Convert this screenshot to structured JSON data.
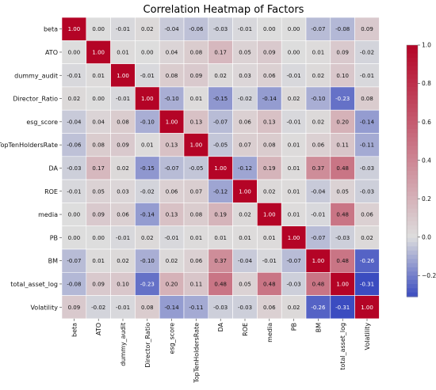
{
  "chart_data": {
    "type": "heatmap",
    "title": "Correlation Heatmap of Factors",
    "labels": [
      "beta",
      "ATO",
      "dummy_audit",
      "Director_Ratio",
      "esg_score",
      "TopTenHoldersRate",
      "DA",
      "ROE",
      "media",
      "PB",
      "BM",
      "total_asset_log",
      "Volatility"
    ],
    "values": [
      [
        1.0,
        0.0,
        -0.01,
        0.02,
        -0.04,
        -0.06,
        -0.03,
        -0.01,
        0.0,
        0.0,
        -0.07,
        -0.08,
        0.09
      ],
      [
        0.0,
        1.0,
        0.01,
        -0.0,
        0.04,
        0.08,
        0.17,
        0.05,
        0.09,
        -0.0,
        0.01,
        0.09,
        -0.02
      ],
      [
        -0.01,
        0.01,
        1.0,
        -0.01,
        0.08,
        0.09,
        0.02,
        0.03,
        0.06,
        -0.01,
        0.02,
        0.1,
        -0.01
      ],
      [
        0.02,
        -0.0,
        -0.01,
        1.0,
        -0.1,
        0.01,
        -0.15,
        -0.02,
        -0.14,
        0.02,
        -0.1,
        -0.23,
        0.08
      ],
      [
        -0.04,
        0.04,
        0.08,
        -0.1,
        1.0,
        0.13,
        -0.07,
        0.06,
        0.13,
        -0.01,
        0.02,
        0.2,
        -0.14
      ],
      [
        -0.06,
        0.08,
        0.09,
        0.01,
        0.13,
        1.0,
        -0.05,
        0.07,
        0.08,
        0.01,
        0.06,
        0.11,
        -0.11
      ],
      [
        -0.03,
        0.17,
        0.02,
        -0.15,
        -0.07,
        -0.05,
        1.0,
        -0.12,
        0.19,
        0.01,
        0.37,
        0.48,
        -0.03
      ],
      [
        -0.01,
        0.05,
        0.03,
        -0.02,
        0.06,
        0.07,
        -0.12,
        1.0,
        0.02,
        0.01,
        -0.04,
        0.05,
        -0.03
      ],
      [
        0.0,
        0.09,
        0.06,
        -0.14,
        0.13,
        0.08,
        0.19,
        0.02,
        1.0,
        0.01,
        -0.01,
        0.48,
        0.06
      ],
      [
        0.0,
        -0.0,
        -0.01,
        0.02,
        -0.01,
        0.01,
        0.01,
        0.01,
        0.01,
        1.0,
        -0.07,
        -0.03,
        0.02
      ],
      [
        -0.07,
        0.01,
        0.02,
        -0.1,
        0.02,
        0.06,
        0.37,
        -0.04,
        -0.01,
        -0.07,
        1.0,
        0.48,
        -0.26
      ],
      [
        -0.08,
        0.09,
        0.1,
        -0.23,
        0.2,
        0.11,
        0.48,
        0.05,
        0.48,
        -0.03,
        0.48,
        1.0,
        -0.31
      ],
      [
        0.09,
        -0.02,
        -0.01,
        0.08,
        -0.14,
        -0.11,
        -0.03,
        -0.03,
        0.06,
        0.02,
        -0.26,
        -0.31,
        1.0
      ]
    ],
    "value_format": "0.00",
    "colormap": "coolwarm",
    "colorbar": {
      "range": [
        -0.31,
        1.0
      ],
      "ticks": [
        "-0.2",
        "0.0",
        "0.2",
        "0.4",
        "0.6",
        "0.8",
        "1.0"
      ]
    },
    "colors": {
      "low": "#3b4cc0",
      "mid": "#dddddd",
      "high": "#b40426"
    }
  }
}
